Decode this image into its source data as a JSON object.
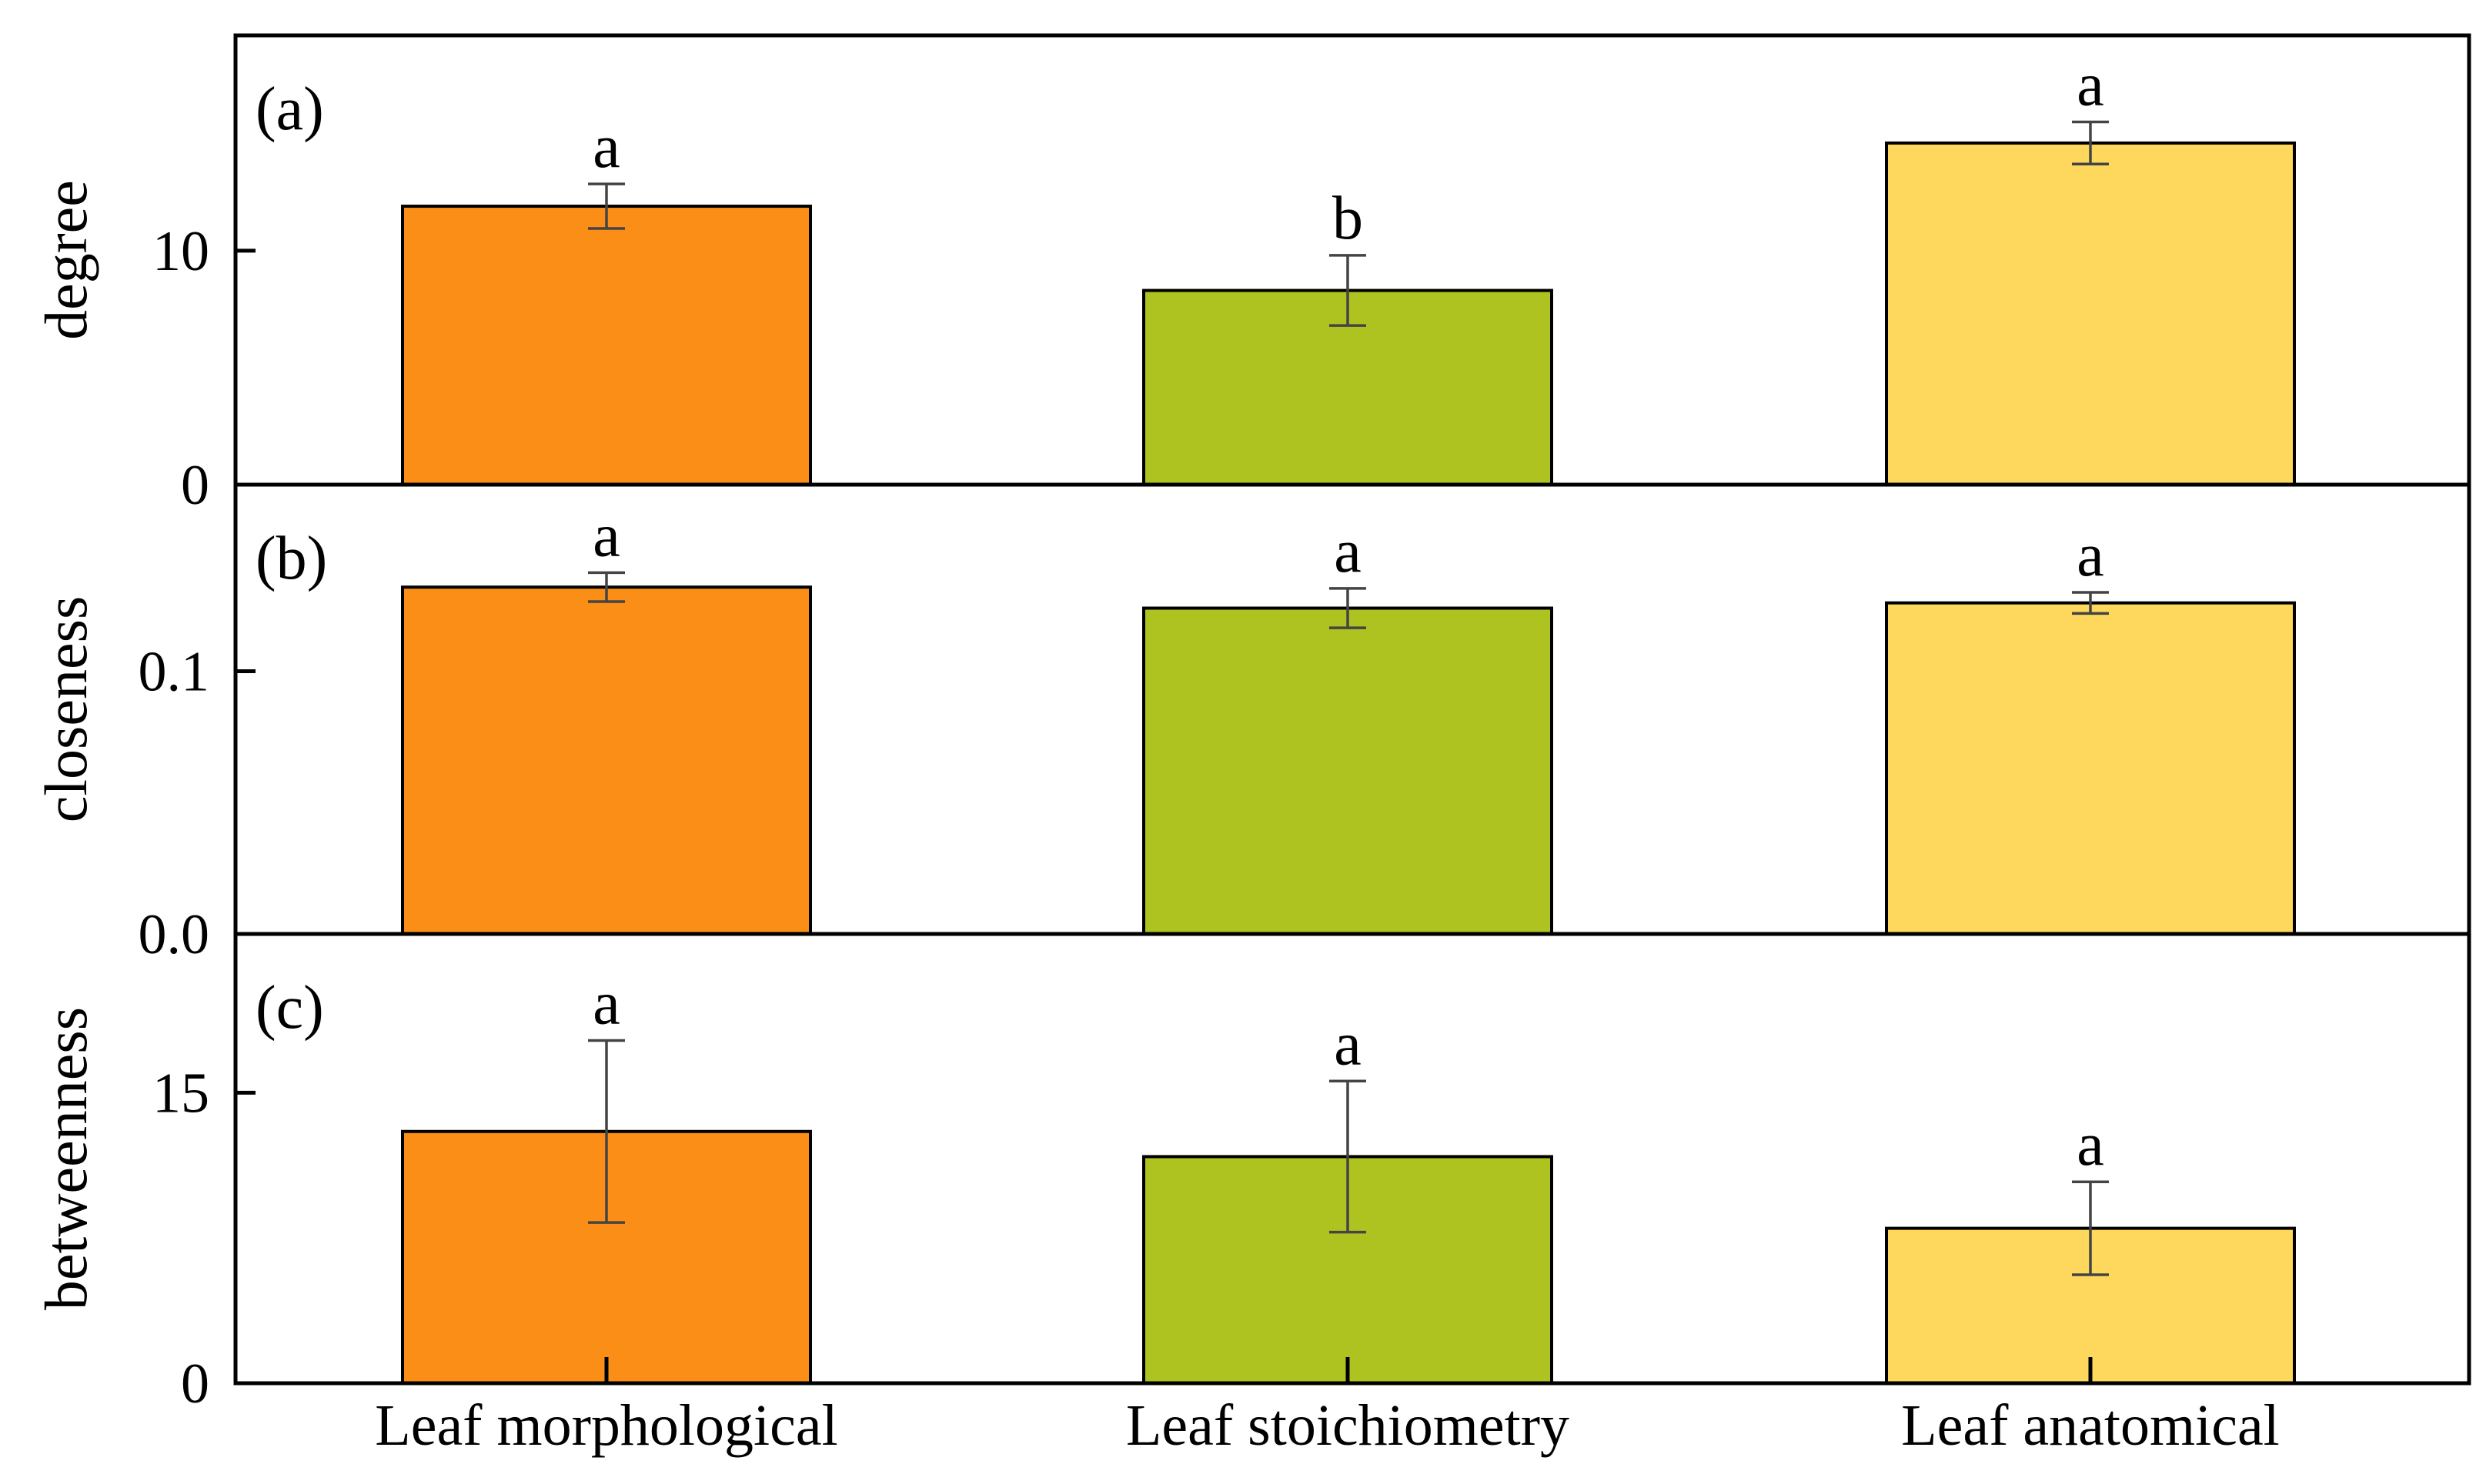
{
  "chart_data": [
    {
      "type": "bar",
      "panel_label": "(a)",
      "ylabel": "degree",
      "categories": [
        "Leaf morphological",
        "Leaf stoichiometry",
        "Leaf anatomical"
      ],
      "values": [
        11.9,
        8.3,
        14.6
      ],
      "errors": [
        0.95,
        1.5,
        0.9
      ],
      "significance": [
        "a",
        "b",
        "a"
      ],
      "ylim": [
        0,
        19.2
      ],
      "yticks": [
        0,
        10
      ],
      "ytick_labels": [
        "0",
        "10"
      ],
      "colors": [
        "#FA8E16",
        "#AEC31F",
        "#FED85C"
      ]
    },
    {
      "type": "bar",
      "panel_label": "(b)",
      "ylabel": "closeness",
      "categories": [
        "Leaf morphological",
        "Leaf stoichiometry",
        "Leaf anatomical"
      ],
      "values": [
        0.132,
        0.124,
        0.126
      ],
      "errors": [
        0.0055,
        0.0075,
        0.004
      ],
      "significance": [
        "a",
        "a",
        "a"
      ],
      "ylim": [
        0,
        0.171
      ],
      "yticks": [
        0,
        0.1
      ],
      "ytick_labels": [
        "0.0",
        "0.1"
      ],
      "colors": [
        "#FA8E16",
        "#AEC31F",
        "#FED85C"
      ]
    },
    {
      "type": "bar",
      "panel_label": "(c)",
      "ylabel": "betweenness",
      "categories": [
        "Leaf morphological",
        "Leaf stoichiometry",
        "Leaf anatomical"
      ],
      "values": [
        13.0,
        11.7,
        8.0
      ],
      "errors": [
        4.7,
        3.9,
        2.4
      ],
      "significance": [
        "a",
        "a",
        "a"
      ],
      "ylim": [
        0,
        23.2
      ],
      "yticks": [
        0,
        15
      ],
      "ytick_labels": [
        "0",
        "15"
      ],
      "colors": [
        "#FA8E16",
        "#AEC31F",
        "#FED85C"
      ]
    }
  ]
}
